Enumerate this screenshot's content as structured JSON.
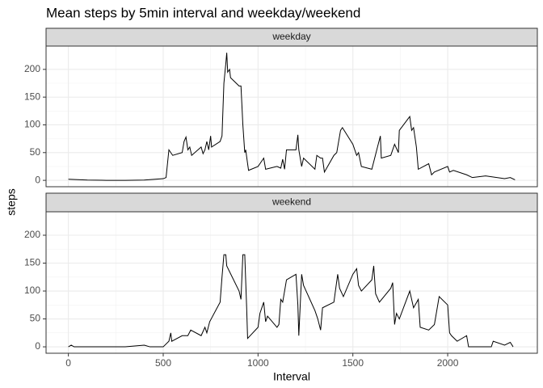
{
  "title": "Mean steps by 5min interval and weekday/weekend",
  "x_label": "Interval",
  "y_label": "steps",
  "chart_data": [
    {
      "type": "line",
      "title": "weekday",
      "color": "#000000",
      "grid": true,
      "minor_grid": true,
      "xlim": [
        -117.75,
        2472.75
      ],
      "ylim": [
        -11.5,
        242
      ],
      "xticks": [
        0,
        500,
        1000,
        1500,
        2000
      ],
      "yticks": [
        0,
        50,
        100,
        150,
        200
      ],
      "x": [
        0,
        100,
        200,
        300,
        400,
        500,
        515,
        530,
        550,
        600,
        610,
        620,
        630,
        640,
        650,
        700,
        710,
        720,
        730,
        740,
        750,
        755,
        800,
        810,
        820,
        830,
        835,
        840,
        850,
        855,
        900,
        910,
        920,
        930,
        935,
        945,
        950,
        1000,
        1010,
        1030,
        1040,
        1100,
        1120,
        1130,
        1140,
        1150,
        1200,
        1210,
        1215,
        1230,
        1240,
        1300,
        1310,
        1330,
        1340,
        1350,
        1400,
        1415,
        1435,
        1445,
        1500,
        1520,
        1530,
        1545,
        1600,
        1630,
        1645,
        1650,
        1700,
        1720,
        1740,
        1745,
        1800,
        1810,
        1820,
        1835,
        1845,
        1900,
        1915,
        1930,
        2000,
        2010,
        2030,
        2100,
        2130,
        2200,
        2300,
        2330,
        2355
      ],
      "values": [
        2,
        0.5,
        0,
        0,
        0.5,
        3,
        5,
        55,
        45,
        50,
        70,
        78,
        55,
        60,
        45,
        60,
        48,
        55,
        70,
        55,
        80,
        60,
        70,
        80,
        175,
        210,
        230,
        195,
        200,
        185,
        170,
        170,
        100,
        50,
        55,
        30,
        18,
        25,
        30,
        40,
        20,
        25,
        22,
        38,
        20,
        55,
        55,
        82,
        55,
        25,
        40,
        20,
        45,
        40,
        40,
        15,
        45,
        50,
        90,
        95,
        65,
        45,
        50,
        25,
        20,
        60,
        80,
        40,
        45,
        65,
        50,
        90,
        115,
        90,
        95,
        60,
        20,
        30,
        10,
        15,
        25,
        15,
        18,
        10,
        5,
        8,
        3,
        5,
        1
      ]
    },
    {
      "type": "line",
      "title": "weekend",
      "color": "#000000",
      "grid": true,
      "minor_grid": true,
      "xlim": [
        -117.75,
        2472.75
      ],
      "ylim": [
        -11.5,
        242
      ],
      "xticks": [
        0,
        500,
        1000,
        1500,
        2000
      ],
      "yticks": [
        0,
        50,
        100,
        150,
        200
      ],
      "x": [
        0,
        15,
        30,
        100,
        300,
        400,
        430,
        500,
        530,
        540,
        545,
        600,
        630,
        645,
        700,
        720,
        730,
        745,
        800,
        810,
        820,
        830,
        835,
        900,
        910,
        920,
        930,
        940,
        945,
        1000,
        1010,
        1030,
        1040,
        1050,
        1100,
        1110,
        1120,
        1130,
        1140,
        1150,
        1200,
        1210,
        1215,
        1230,
        1240,
        1300,
        1315,
        1330,
        1340,
        1400,
        1420,
        1430,
        1450,
        1500,
        1520,
        1530,
        1545,
        1600,
        1610,
        1620,
        1640,
        1700,
        1710,
        1720,
        1730,
        1745,
        1800,
        1820,
        1845,
        1855,
        1900,
        1930,
        1955,
        2000,
        2010,
        2020,
        2050,
        2100,
        2110,
        2200,
        2230,
        2240,
        2300,
        2330,
        2345
      ],
      "values": [
        0,
        3,
        0,
        0,
        0,
        3,
        0,
        0,
        10,
        25,
        10,
        20,
        20,
        30,
        20,
        35,
        25,
        45,
        80,
        125,
        165,
        165,
        145,
        100,
        85,
        165,
        165,
        70,
        15,
        35,
        60,
        80,
        45,
        55,
        35,
        40,
        85,
        80,
        100,
        120,
        130,
        75,
        20,
        130,
        110,
        65,
        50,
        30,
        70,
        80,
        130,
        105,
        90,
        130,
        140,
        110,
        100,
        120,
        145,
        95,
        80,
        105,
        115,
        40,
        60,
        50,
        100,
        70,
        85,
        35,
        30,
        40,
        90,
        75,
        25,
        20,
        10,
        20,
        0,
        0,
        0,
        10,
        3,
        8,
        0
      ]
    }
  ]
}
